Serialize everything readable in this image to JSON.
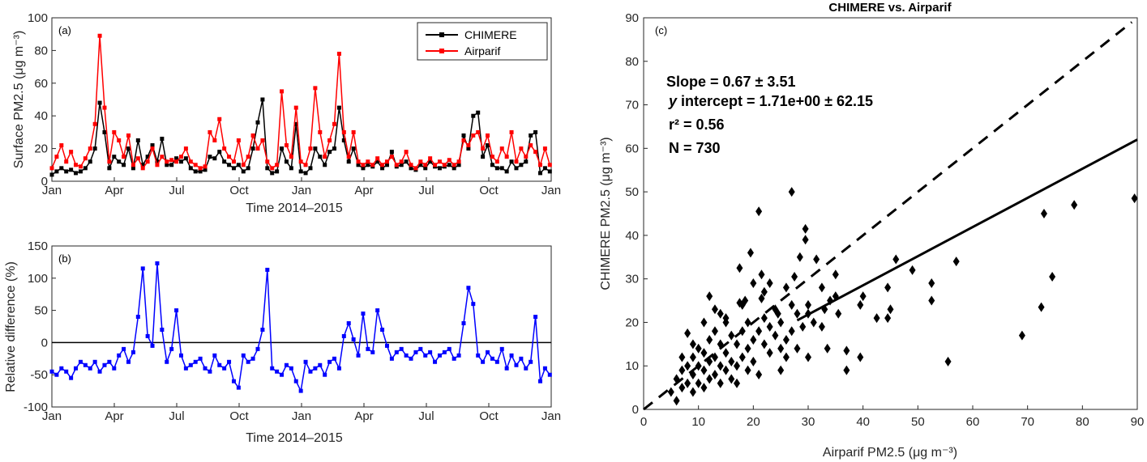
{
  "chart_data": [
    {
      "panel": "(a)",
      "type": "line",
      "title": "",
      "xlabel": "Time 2014–2015",
      "ylabel": "Surface PM2.5 (μg m⁻³)",
      "ylim": [
        0,
        100
      ],
      "yticks": [
        "0",
        "20",
        "40",
        "60",
        "80",
        "100"
      ],
      "xticks": [
        "Jan",
        "Apr",
        "Jul",
        "Oct",
        "Jan",
        "Apr",
        "Jul",
        "Oct",
        "Jan"
      ],
      "x_days": [
        0,
        7,
        14,
        21,
        28,
        35,
        42,
        49,
        56,
        63,
        70,
        77,
        84,
        91,
        98,
        105,
        112,
        119,
        126,
        133,
        140,
        147,
        154,
        161,
        168,
        175,
        182,
        189,
        196,
        203,
        210,
        217,
        224,
        231,
        238,
        245,
        252,
        259,
        266,
        273,
        280,
        287,
        294,
        301,
        308,
        315,
        322,
        329,
        336,
        343,
        350,
        357,
        364,
        371,
        378,
        385,
        392,
        399,
        406,
        413,
        420,
        427,
        434,
        441,
        448,
        455,
        462,
        469,
        476,
        483,
        490,
        497,
        504,
        511,
        518,
        525,
        532,
        539,
        546,
        553,
        560,
        567,
        574,
        581,
        588,
        595,
        602,
        609,
        616,
        623,
        630,
        637,
        644,
        651,
        658,
        665,
        672,
        679,
        686,
        693,
        700,
        707,
        714,
        721,
        728
      ],
      "legend": "top-right",
      "series": [
        {
          "name": "CHIMERE",
          "color": "#000000",
          "values": [
            4,
            6,
            8,
            6,
            7,
            5,
            6,
            8,
            12,
            20,
            48,
            30,
            8,
            15,
            12,
            10,
            20,
            8,
            25,
            10,
            15,
            22,
            12,
            26,
            10,
            10,
            14,
            12,
            14,
            8,
            6,
            6,
            7,
            15,
            14,
            18,
            12,
            10,
            8,
            10,
            6,
            8,
            20,
            36,
            50,
            8,
            5,
            6,
            20,
            12,
            8,
            35,
            6,
            5,
            8,
            20,
            15,
            10,
            18,
            20,
            45,
            25,
            12,
            20,
            10,
            8,
            10,
            9,
            12,
            8,
            10,
            18,
            9,
            10,
            12,
            8,
            7,
            10,
            8,
            12,
            9,
            8,
            9,
            10,
            8,
            10,
            28,
            20,
            40,
            42,
            15,
            22,
            10,
            8,
            8,
            6,
            12,
            8,
            10,
            12,
            28,
            30,
            5,
            8,
            6
          ]
        },
        {
          "name": "Airparif",
          "color": "#ff0000",
          "values": [
            8,
            15,
            22,
            12,
            18,
            10,
            9,
            14,
            20,
            35,
            89,
            45,
            12,
            30,
            25,
            15,
            28,
            10,
            14,
            8,
            12,
            20,
            10,
            15,
            12,
            13,
            12,
            15,
            20,
            12,
            10,
            8,
            9,
            30,
            25,
            38,
            20,
            15,
            12,
            25,
            10,
            15,
            28,
            20,
            25,
            12,
            8,
            10,
            55,
            22,
            15,
            45,
            12,
            10,
            20,
            57,
            30,
            15,
            25,
            35,
            78,
            30,
            15,
            30,
            12,
            10,
            12,
            10,
            14,
            10,
            12,
            15,
            10,
            12,
            18,
            10,
            8,
            12,
            10,
            14,
            10,
            12,
            10,
            13,
            10,
            12,
            25,
            22,
            28,
            30,
            20,
            28,
            15,
            12,
            20,
            15,
            30,
            12,
            20,
            15,
            22,
            18,
            10,
            20,
            10
          ]
        }
      ]
    },
    {
      "panel": "(b)",
      "type": "line",
      "xlabel": "Time 2014–2015",
      "ylabel": "Relative difference (%)",
      "ylim": [
        -100,
        150
      ],
      "yticks": [
        "-100",
        "-50",
        "0",
        "50",
        "100",
        "150"
      ],
      "xticks": [
        "Jan",
        "Apr",
        "Jul",
        "Oct",
        "Jan",
        "Apr",
        "Jul",
        "Oct",
        "Jan"
      ],
      "reference_line": 0,
      "series": [
        {
          "name": "Relative difference",
          "color": "#0000ff",
          "values": [
            -45,
            -50,
            -40,
            -45,
            -55,
            -40,
            -30,
            -35,
            -40,
            -30,
            -45,
            -35,
            -30,
            -40,
            -20,
            -10,
            -30,
            -15,
            40,
            115,
            10,
            -5,
            123,
            20,
            -30,
            -10,
            50,
            -20,
            -40,
            -35,
            -30,
            -25,
            -40,
            -45,
            -20,
            -35,
            -40,
            -30,
            -60,
            -70,
            -20,
            -30,
            -25,
            -10,
            20,
            113,
            -40,
            -45,
            -50,
            -35,
            -40,
            -60,
            -75,
            -30,
            -45,
            -40,
            -35,
            -50,
            -30,
            -25,
            -40,
            10,
            30,
            5,
            -20,
            45,
            -10,
            -15,
            50,
            20,
            -5,
            -25,
            -15,
            -10,
            -20,
            -25,
            -15,
            -10,
            -20,
            -15,
            -30,
            -20,
            -15,
            -10,
            -25,
            -20,
            30,
            85,
            60,
            -20,
            -30,
            -15,
            -25,
            -30,
            -10,
            -40,
            -20,
            -35,
            -25,
            -40,
            -30,
            40,
            -60,
            -40,
            -50
          ]
        }
      ]
    },
    {
      "panel": "(c)",
      "type": "scatter",
      "title": "CHIMERE vs. Airparif",
      "xlabel": "Airparif PM2.5 (μg m⁻³)",
      "ylabel": "CHIMERE PM2.5 (μg m⁻³)",
      "xlim": [
        0,
        90
      ],
      "ylim": [
        0,
        90
      ],
      "xticks": [
        "0",
        "10",
        "20",
        "30",
        "40",
        "50",
        "60",
        "70",
        "80",
        "90"
      ],
      "yticks": [
        "0",
        "10",
        "20",
        "30",
        "40",
        "50",
        "60",
        "70",
        "80",
        "90"
      ],
      "stats": {
        "slope": "Slope = 0.67 ± 3.51",
        "intercept_prefix": "y",
        "intercept": " intercept = 1.71e+00 ± 62.15",
        "r2": "r² = 0.56",
        "n": "N = 730"
      },
      "fit_line": {
        "slope": 0.67,
        "intercept": 1.71,
        "style": "solid"
      },
      "one_to_one_line": {
        "style": "dashed"
      },
      "points": [
        [
          89.5,
          48.5
        ],
        [
          78.5,
          47
        ],
        [
          73,
          45
        ],
        [
          74.5,
          30.5
        ],
        [
          72.5,
          23.5
        ],
        [
          69,
          17
        ],
        [
          55.5,
          11
        ],
        [
          57,
          34
        ],
        [
          52.5,
          29
        ],
        [
          52.5,
          25
        ],
        [
          49,
          32
        ],
        [
          46,
          34.5
        ],
        [
          44.5,
          28
        ],
        [
          45,
          23
        ],
        [
          44.5,
          21
        ],
        [
          42.5,
          21
        ],
        [
          39.5,
          24
        ],
        [
          40,
          26
        ],
        [
          39.5,
          12
        ],
        [
          37,
          9
        ],
        [
          37,
          13.5
        ],
        [
          35.5,
          22
        ],
        [
          35,
          26
        ],
        [
          35,
          31
        ],
        [
          33.5,
          14
        ],
        [
          32.5,
          19
        ],
        [
          32.5,
          28
        ],
        [
          31.5,
          34.5
        ],
        [
          30,
          24
        ],
        [
          30,
          12
        ],
        [
          29.5,
          41.5
        ],
        [
          29.5,
          39
        ],
        [
          28.5,
          35
        ],
        [
          27.5,
          30.5
        ],
        [
          27,
          50
        ],
        [
          26,
          28
        ],
        [
          26,
          16
        ],
        [
          25,
          9
        ],
        [
          24.5,
          22
        ],
        [
          23,
          29
        ],
        [
          22,
          27
        ],
        [
          21.5,
          31
        ],
        [
          21.5,
          25.5
        ],
        [
          21,
          45.5
        ],
        [
          20,
          29
        ],
        [
          19.5,
          36
        ],
        [
          18.5,
          25
        ],
        [
          17.5,
          32.5
        ],
        [
          17.5,
          24.5
        ],
        [
          17,
          6
        ],
        [
          12,
          26
        ],
        [
          8,
          17.5
        ],
        [
          6,
          2
        ],
        [
          5,
          4
        ],
        [
          6,
          7
        ],
        [
          7,
          5
        ],
        [
          7,
          9
        ],
        [
          8,
          6
        ],
        [
          8,
          10
        ],
        [
          9,
          4
        ],
        [
          9,
          8
        ],
        [
          9,
          12
        ],
        [
          10,
          6
        ],
        [
          10,
          10
        ],
        [
          10,
          14
        ],
        [
          11,
          5
        ],
        [
          11,
          9
        ],
        [
          11,
          13
        ],
        [
          12,
          7
        ],
        [
          12,
          11
        ],
        [
          12,
          16
        ],
        [
          13,
          8
        ],
        [
          13,
          12
        ],
        [
          13,
          18
        ],
        [
          14,
          6
        ],
        [
          14,
          10
        ],
        [
          14,
          15
        ],
        [
          14,
          22
        ],
        [
          15,
          9
        ],
        [
          15,
          13
        ],
        [
          15,
          20
        ],
        [
          16,
          11
        ],
        [
          16,
          17
        ],
        [
          17,
          10
        ],
        [
          17,
          15
        ],
        [
          18,
          12
        ],
        [
          18,
          18
        ],
        [
          19,
          14
        ],
        [
          19,
          20
        ],
        [
          20,
          11
        ],
        [
          20,
          16
        ],
        [
          21,
          18
        ],
        [
          22,
          15
        ],
        [
          22,
          21
        ],
        [
          23,
          13
        ],
        [
          23,
          19
        ],
        [
          24,
          17
        ],
        [
          24,
          23
        ],
        [
          25,
          20
        ],
        [
          26,
          12
        ],
        [
          27,
          18
        ],
        [
          27,
          24
        ],
        [
          28,
          14
        ],
        [
          28,
          22
        ],
        [
          29,
          19
        ],
        [
          30,
          22
        ],
        [
          31,
          20
        ],
        [
          33,
          23
        ],
        [
          34,
          25
        ],
        [
          13,
          23
        ],
        [
          15,
          21
        ],
        [
          11,
          20
        ],
        [
          9,
          15
        ],
        [
          7,
          12
        ],
        [
          16,
          7
        ],
        [
          19,
          9
        ],
        [
          21,
          8
        ],
        [
          18,
          24
        ],
        [
          25,
          14
        ]
      ]
    }
  ]
}
